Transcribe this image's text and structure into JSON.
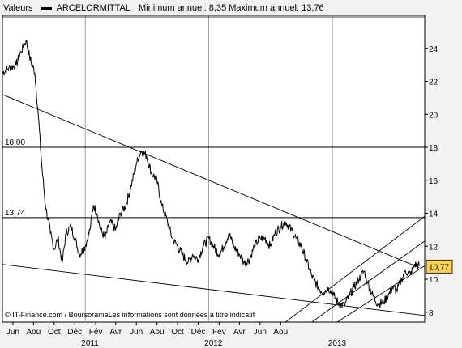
{
  "header": {
    "series_label": "Valeurs",
    "ticker": "ARCELORMITTAL",
    "stats": "Minimum annuel: 8,35 Maximum annuel: 13,76"
  },
  "credits": "© IT-Finance.com / BoursoramaLes informations sont données à titre indicatif",
  "colors": {
    "background": "#f2f2f2",
    "plot_background": "#ffffff",
    "price_line": "#000000",
    "last_value_badge": "#ffd24d"
  },
  "chart_data": {
    "type": "line",
    "title": "ARCELORMITTAL",
    "ylim": [
      7.4,
      26
    ],
    "y_ticks": [
      8,
      10,
      12,
      14,
      16,
      18,
      20,
      22,
      24
    ],
    "y_axis_side": "right",
    "grid": "vertical lines at year boundaries only",
    "x_tick_labels": [
      "Jun",
      "Aou",
      "Oct",
      "Déc",
      "Fév",
      "Avr",
      "Jun",
      "Aou",
      "Oct",
      "Déc",
      "Fév",
      "Avr",
      "Jun",
      "Aou"
    ],
    "year_labels": [
      "2011",
      "2012",
      "2013"
    ],
    "horizontal_levels": [
      {
        "label": "18,00",
        "value": 18.0
      },
      {
        "label": "13,74",
        "value": 13.74
      }
    ],
    "last_value": 10.77,
    "last_value_label": "10,77",
    "series": [
      {
        "x": [
          "2010-05-01",
          "2010-05-20",
          "2010-06-10",
          "2010-06-25",
          "2010-07-10",
          "2010-07-20",
          "2010-08-05",
          "2010-08-15",
          "2010-08-25",
          "2010-09-05",
          "2010-09-20",
          "2010-10-01",
          "2010-10-12",
          "2010-10-25",
          "2010-11-05",
          "2010-11-20",
          "2010-12-01",
          "2010-12-15",
          "2011-01-01",
          "2011-01-15",
          "2011-01-25",
          "2011-02-05",
          "2011-02-15",
          "2011-03-01",
          "2011-03-15",
          "2011-04-01",
          "2011-04-15",
          "2011-05-01",
          "2011-05-15",
          "2011-06-01",
          "2011-06-15",
          "2011-07-01",
          "2011-07-15",
          "2011-08-01",
          "2011-08-15",
          "2011-09-01",
          "2011-09-15",
          "2011-10-01",
          "2011-10-15",
          "2011-11-01",
          "2011-11-15",
          "2011-12-01",
          "2011-12-15",
          "2012-01-01",
          "2012-01-15",
          "2012-02-01",
          "2012-02-15",
          "2012-03-01",
          "2012-03-15",
          "2012-04-01",
          "2012-04-15",
          "2012-05-01",
          "2012-05-15",
          "2012-06-01",
          "2012-06-15",
          "2012-07-01",
          "2012-07-15",
          "2012-08-01",
          "2012-08-15",
          "2012-09-01",
          "2012-09-15",
          "2012-10-01",
          "2012-10-15",
          "2012-11-01",
          "2012-11-20",
          "2012-12-05",
          "2012-12-20",
          "2013-01-05",
          "2013-01-20",
          "2013-02-05",
          "2013-02-20",
          "2013-03-05",
          "2013-03-20",
          "2013-04-05",
          "2013-04-15",
          "2013-05-01",
          "2013-05-15",
          "2013-06-01",
          "2013-06-15",
          "2013-06-28",
          "2013-07-10",
          "2013-07-25",
          "2013-08-05",
          "2013-08-20",
          "2013-09-01",
          "2013-09-15"
        ],
        "values": [
          22.5,
          22.8,
          23.0,
          23.8,
          24.5,
          23.5,
          22.5,
          20.0,
          17.0,
          14.5,
          12.8,
          11.8,
          12.5,
          11.0,
          12.8,
          13.2,
          12.5,
          11.5,
          12.0,
          13.0,
          14.5,
          14.0,
          13.0,
          12.5,
          13.5,
          13.0,
          14.0,
          14.5,
          15.5,
          17.0,
          17.8,
          17.5,
          16.5,
          16.0,
          14.5,
          13.5,
          12.5,
          12.0,
          11.5,
          11.0,
          11.5,
          11.2,
          12.0,
          12.5,
          12.0,
          11.5,
          12.0,
          12.8,
          12.0,
          11.5,
          11.0,
          11.2,
          12.0,
          12.5,
          12.5,
          12.0,
          12.8,
          13.2,
          13.5,
          13.0,
          12.5,
          12.0,
          11.2,
          10.2,
          9.5,
          9.2,
          9.5,
          9.0,
          8.5,
          8.4,
          9.0,
          9.5,
          10.0,
          10.5,
          9.8,
          9.0,
          8.5,
          8.6,
          9.0,
          9.5,
          9.3,
          10.0,
          10.5,
          10.3,
          10.9,
          10.8
        ],
        "style": "jagged daily black price line"
      }
    ],
    "trendlines": [
      {
        "from": {
          "x": "2010-05-01",
          "y": 21.2
        },
        "to": {
          "x": "2013-09-15",
          "y": 10.7
        }
      },
      {
        "from": {
          "x": "2010-05-01",
          "y": 10.9
        },
        "to": {
          "x": "2013-09-30",
          "y": 7.8
        }
      },
      {
        "from": {
          "x": "2012-08-15",
          "y": 7.4
        },
        "to": {
          "x": "2013-09-30",
          "y": 13.8
        }
      },
      {
        "from": {
          "x": "2012-11-01",
          "y": 7.4
        },
        "to": {
          "x": "2013-09-30",
          "y": 12.3
        }
      },
      {
        "from": {
          "x": "2013-01-15",
          "y": 7.4
        },
        "to": {
          "x": "2013-09-30",
          "y": 10.8
        }
      }
    ]
  }
}
